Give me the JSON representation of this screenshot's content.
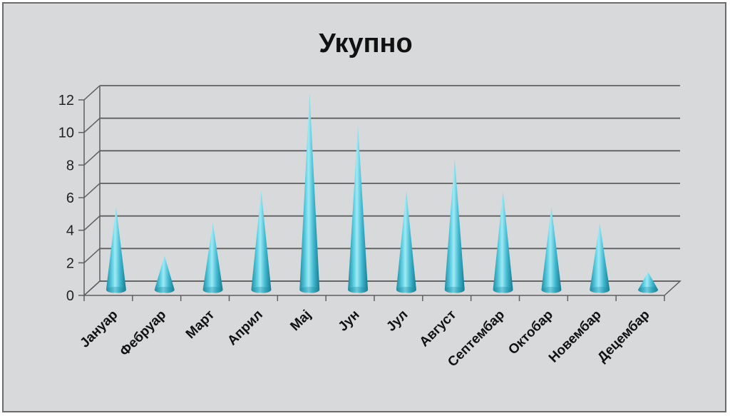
{
  "chart_data": {
    "type": "bar",
    "style": "3d-cone",
    "title": "Укупно",
    "xlabel": "",
    "ylabel": "",
    "categories": [
      "Јануар",
      "Фебруар",
      "Март",
      "Април",
      "Мај",
      "Јун",
      "Јул",
      "Август",
      "Септембар",
      "Октобар",
      "Новембар",
      "Децембар"
    ],
    "values": [
      5,
      2,
      4,
      6,
      12,
      10,
      6,
      8,
      6,
      5,
      4,
      1
    ],
    "ylim": [
      0,
      12
    ],
    "yticks": [
      "0",
      "2",
      "4",
      "6",
      "8",
      "10",
      "12"
    ],
    "grid": true,
    "legend": "none",
    "colors": {
      "cone_light": "#8fe3f2",
      "cone_mid": "#3fb8cf",
      "cone_dark": "#1f8aa0",
      "grid": "#5f5f5f",
      "plot_background": "#d8d9db"
    }
  }
}
